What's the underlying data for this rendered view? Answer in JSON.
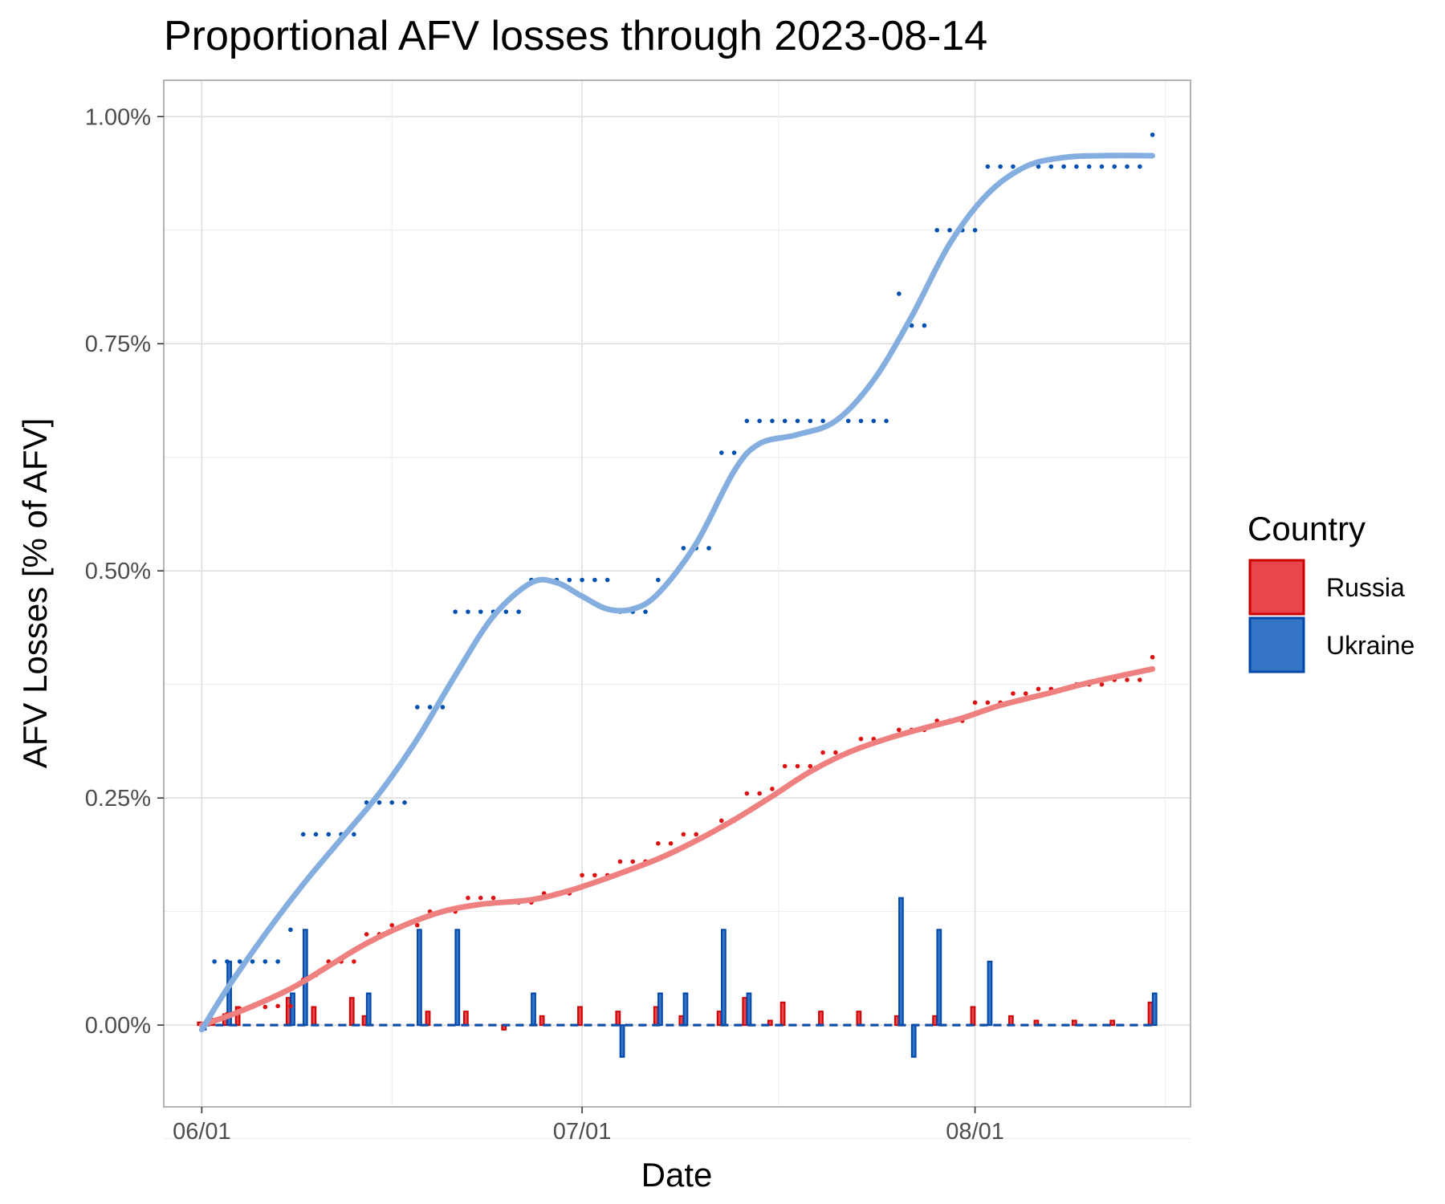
{
  "chart_data": {
    "type": "line",
    "title": "Proportional AFV losses through 2023-08-14",
    "xlabel": "Date",
    "ylabel": "AFV Losses [% of AFV]",
    "x_ticks": [
      "06/01",
      "07/01",
      "08/01"
    ],
    "x_tick_dates": [
      "2023-06-01",
      "2023-07-01",
      "2023-08-01"
    ],
    "x_range": [
      "2023-05-29",
      "2023-08-18"
    ],
    "y_ticks": [
      "0.00%",
      "0.25%",
      "0.50%",
      "0.75%",
      "1.00%"
    ],
    "y_tick_values": [
      0,
      0.25,
      0.5,
      0.75,
      1.0
    ],
    "ylim": [
      -0.09,
      1.04
    ],
    "grid": true,
    "legend": {
      "title": "Country",
      "position": "right",
      "entries": [
        {
          "name": "Russia",
          "color": "#e8454c",
          "border": "#cc0000"
        },
        {
          "name": "Ukraine",
          "color": "#3575c5",
          "border": "#0047ab"
        }
      ]
    },
    "series": [
      {
        "name": "Russia",
        "color": "#dd1111",
        "smooth_color": "#ee8080",
        "bar_color": "#e8454c",
        "bar_border": "#cc0000",
        "cumulative": [
          [
            "2023-06-01",
            0.0
          ],
          [
            "2023-06-02",
            0.005
          ],
          [
            "2023-06-03",
            0.012
          ],
          [
            "2023-06-04",
            0.018
          ],
          [
            "2023-06-05",
            0.02
          ],
          [
            "2023-06-06",
            0.02
          ],
          [
            "2023-06-07",
            0.021
          ],
          [
            "2023-06-08",
            0.021
          ],
          [
            "2023-06-09",
            0.05
          ],
          [
            "2023-06-10",
            0.055
          ],
          [
            "2023-06-11",
            0.07
          ],
          [
            "2023-06-12",
            0.07
          ],
          [
            "2023-06-13",
            0.07
          ],
          [
            "2023-06-14",
            0.1
          ],
          [
            "2023-06-15",
            0.1
          ],
          [
            "2023-06-16",
            0.11
          ],
          [
            "2023-06-17",
            0.11
          ],
          [
            "2023-06-18",
            0.11
          ],
          [
            "2023-06-19",
            0.125
          ],
          [
            "2023-06-20",
            0.125
          ],
          [
            "2023-06-21",
            0.125
          ],
          [
            "2023-06-22",
            0.14
          ],
          [
            "2023-06-23",
            0.14
          ],
          [
            "2023-06-24",
            0.14
          ],
          [
            "2023-06-25",
            0.135
          ],
          [
            "2023-06-26",
            0.135
          ],
          [
            "2023-06-27",
            0.135
          ],
          [
            "2023-06-28",
            0.145
          ],
          [
            "2023-06-29",
            0.145
          ],
          [
            "2023-06-30",
            0.145
          ],
          [
            "2023-07-01",
            0.165
          ],
          [
            "2023-07-02",
            0.165
          ],
          [
            "2023-07-03",
            0.165
          ],
          [
            "2023-07-04",
            0.18
          ],
          [
            "2023-07-05",
            0.18
          ],
          [
            "2023-07-06",
            0.18
          ],
          [
            "2023-07-07",
            0.2
          ],
          [
            "2023-07-08",
            0.2
          ],
          [
            "2023-07-09",
            0.21
          ],
          [
            "2023-07-10",
            0.21
          ],
          [
            "2023-07-11",
            0.21
          ],
          [
            "2023-07-12",
            0.225
          ],
          [
            "2023-07-13",
            0.225
          ],
          [
            "2023-07-14",
            0.255
          ],
          [
            "2023-07-15",
            0.255
          ],
          [
            "2023-07-16",
            0.26
          ],
          [
            "2023-07-17",
            0.285
          ],
          [
            "2023-07-18",
            0.285
          ],
          [
            "2023-07-19",
            0.285
          ],
          [
            "2023-07-20",
            0.3
          ],
          [
            "2023-07-21",
            0.3
          ],
          [
            "2023-07-22",
            0.3
          ],
          [
            "2023-07-23",
            0.315
          ],
          [
            "2023-07-24",
            0.315
          ],
          [
            "2023-07-25",
            0.315
          ],
          [
            "2023-07-26",
            0.325
          ],
          [
            "2023-07-27",
            0.325
          ],
          [
            "2023-07-28",
            0.325
          ],
          [
            "2023-07-29",
            0.335
          ],
          [
            "2023-07-30",
            0.335
          ],
          [
            "2023-07-31",
            0.335
          ],
          [
            "2023-08-01",
            0.355
          ],
          [
            "2023-08-02",
            0.355
          ],
          [
            "2023-08-03",
            0.355
          ],
          [
            "2023-08-04",
            0.365
          ],
          [
            "2023-08-05",
            0.365
          ],
          [
            "2023-08-06",
            0.37
          ],
          [
            "2023-08-07",
            0.37
          ],
          [
            "2023-08-08",
            0.37
          ],
          [
            "2023-08-09",
            0.375
          ],
          [
            "2023-08-10",
            0.375
          ],
          [
            "2023-08-11",
            0.375
          ],
          [
            "2023-08-12",
            0.38
          ],
          [
            "2023-08-13",
            0.38
          ],
          [
            "2023-08-14",
            0.38
          ],
          [
            "2023-08-15",
            0.405
          ]
        ],
        "trend": [
          [
            "2023-06-01",
            0.0
          ],
          [
            "2023-06-04",
            0.015
          ],
          [
            "2023-06-08",
            0.04
          ],
          [
            "2023-06-11",
            0.065
          ],
          [
            "2023-06-14",
            0.09
          ],
          [
            "2023-06-17",
            0.11
          ],
          [
            "2023-06-20",
            0.125
          ],
          [
            "2023-06-23",
            0.133
          ],
          [
            "2023-06-27",
            0.138
          ],
          [
            "2023-06-30",
            0.148
          ],
          [
            "2023-07-03",
            0.162
          ],
          [
            "2023-07-07",
            0.183
          ],
          [
            "2023-07-10",
            0.203
          ],
          [
            "2023-07-13",
            0.226
          ],
          [
            "2023-07-16",
            0.252
          ],
          [
            "2023-07-19",
            0.279
          ],
          [
            "2023-07-22",
            0.3
          ],
          [
            "2023-07-25",
            0.315
          ],
          [
            "2023-07-28",
            0.327
          ],
          [
            "2023-07-31",
            0.338
          ],
          [
            "2023-08-03",
            0.352
          ],
          [
            "2023-08-07",
            0.366
          ],
          [
            "2023-08-10",
            0.377
          ],
          [
            "2023-08-15",
            0.392
          ]
        ],
        "daily": [
          [
            "2023-06-01",
            0.003
          ],
          [
            "2023-06-02",
            0.007
          ],
          [
            "2023-06-03",
            0.012
          ],
          [
            "2023-06-04",
            0.02
          ],
          [
            "2023-06-08",
            0.03
          ],
          [
            "2023-06-10",
            0.02
          ],
          [
            "2023-06-13",
            0.03
          ],
          [
            "2023-06-14",
            0.01
          ],
          [
            "2023-06-19",
            0.015
          ],
          [
            "2023-06-22",
            0.015
          ],
          [
            "2023-06-25",
            -0.005
          ],
          [
            "2023-06-28",
            0.01
          ],
          [
            "2023-07-01",
            0.02
          ],
          [
            "2023-07-04",
            0.015
          ],
          [
            "2023-07-07",
            0.02
          ],
          [
            "2023-07-09",
            0.01
          ],
          [
            "2023-07-12",
            0.015
          ],
          [
            "2023-07-14",
            0.03
          ],
          [
            "2023-07-16",
            0.005
          ],
          [
            "2023-07-17",
            0.025
          ],
          [
            "2023-07-20",
            0.015
          ],
          [
            "2023-07-23",
            0.015
          ],
          [
            "2023-07-26",
            0.01
          ],
          [
            "2023-07-29",
            0.01
          ],
          [
            "2023-08-01",
            0.02
          ],
          [
            "2023-08-04",
            0.01
          ],
          [
            "2023-08-06",
            0.005
          ],
          [
            "2023-08-09",
            0.005
          ],
          [
            "2023-08-12",
            0.005
          ],
          [
            "2023-08-15",
            0.025
          ]
        ]
      },
      {
        "name": "Ukraine",
        "color": "#0050b0",
        "smooth_color": "#84aee0",
        "bar_color": "#3575c5",
        "bar_border": "#0047ab",
        "cumulative": [
          [
            "2023-06-02",
            0.07
          ],
          [
            "2023-06-03",
            0.07
          ],
          [
            "2023-06-04",
            0.07
          ],
          [
            "2023-06-05",
            0.07
          ],
          [
            "2023-06-06",
            0.07
          ],
          [
            "2023-06-07",
            0.07
          ],
          [
            "2023-06-08",
            0.105
          ],
          [
            "2023-06-09",
            0.21
          ],
          [
            "2023-06-10",
            0.21
          ],
          [
            "2023-06-11",
            0.21
          ],
          [
            "2023-06-12",
            0.21
          ],
          [
            "2023-06-13",
            0.21
          ],
          [
            "2023-06-14",
            0.245
          ],
          [
            "2023-06-15",
            0.245
          ],
          [
            "2023-06-16",
            0.245
          ],
          [
            "2023-06-17",
            0.245
          ],
          [
            "2023-06-18",
            0.35
          ],
          [
            "2023-06-19",
            0.35
          ],
          [
            "2023-06-20",
            0.35
          ],
          [
            "2023-06-21",
            0.455
          ],
          [
            "2023-06-22",
            0.455
          ],
          [
            "2023-06-23",
            0.455
          ],
          [
            "2023-06-24",
            0.455
          ],
          [
            "2023-06-25",
            0.455
          ],
          [
            "2023-06-26",
            0.455
          ],
          [
            "2023-06-27",
            0.49
          ],
          [
            "2023-06-28",
            0.49
          ],
          [
            "2023-06-29",
            0.49
          ],
          [
            "2023-06-30",
            0.49
          ],
          [
            "2023-07-01",
            0.49
          ],
          [
            "2023-07-02",
            0.49
          ],
          [
            "2023-07-03",
            0.49
          ],
          [
            "2023-07-04",
            0.455
          ],
          [
            "2023-07-05",
            0.455
          ],
          [
            "2023-07-06",
            0.455
          ],
          [
            "2023-07-07",
            0.49
          ],
          [
            "2023-07-08",
            0.49
          ],
          [
            "2023-07-09",
            0.525
          ],
          [
            "2023-07-10",
            0.525
          ],
          [
            "2023-07-11",
            0.525
          ],
          [
            "2023-07-12",
            0.63
          ],
          [
            "2023-07-13",
            0.63
          ],
          [
            "2023-07-14",
            0.665
          ],
          [
            "2023-07-15",
            0.665
          ],
          [
            "2023-07-16",
            0.665
          ],
          [
            "2023-07-17",
            0.665
          ],
          [
            "2023-07-18",
            0.665
          ],
          [
            "2023-07-19",
            0.665
          ],
          [
            "2023-07-20",
            0.665
          ],
          [
            "2023-07-21",
            0.665
          ],
          [
            "2023-07-22",
            0.665
          ],
          [
            "2023-07-23",
            0.665
          ],
          [
            "2023-07-24",
            0.665
          ],
          [
            "2023-07-25",
            0.665
          ],
          [
            "2023-07-26",
            0.805
          ],
          [
            "2023-07-27",
            0.77
          ],
          [
            "2023-07-28",
            0.77
          ],
          [
            "2023-07-29",
            0.875
          ],
          [
            "2023-07-30",
            0.875
          ],
          [
            "2023-07-31",
            0.875
          ],
          [
            "2023-08-01",
            0.875
          ],
          [
            "2023-08-02",
            0.945
          ],
          [
            "2023-08-03",
            0.945
          ],
          [
            "2023-08-04",
            0.945
          ],
          [
            "2023-08-05",
            0.945
          ],
          [
            "2023-08-06",
            0.945
          ],
          [
            "2023-08-07",
            0.945
          ],
          [
            "2023-08-08",
            0.945
          ],
          [
            "2023-08-09",
            0.945
          ],
          [
            "2023-08-10",
            0.945
          ],
          [
            "2023-08-11",
            0.945
          ],
          [
            "2023-08-12",
            0.945
          ],
          [
            "2023-08-13",
            0.945
          ],
          [
            "2023-08-14",
            0.945
          ],
          [
            "2023-08-15",
            0.98
          ]
        ],
        "trend": [
          [
            "2023-06-01",
            -0.005
          ],
          [
            "2023-06-03",
            0.04
          ],
          [
            "2023-06-06",
            0.1
          ],
          [
            "2023-06-09",
            0.155
          ],
          [
            "2023-06-12",
            0.205
          ],
          [
            "2023-06-15",
            0.255
          ],
          [
            "2023-06-18",
            0.315
          ],
          [
            "2023-06-21",
            0.385
          ],
          [
            "2023-06-24",
            0.45
          ],
          [
            "2023-06-27",
            0.487
          ],
          [
            "2023-06-29",
            0.487
          ],
          [
            "2023-07-01",
            0.472
          ],
          [
            "2023-07-03",
            0.458
          ],
          [
            "2023-07-05",
            0.458
          ],
          [
            "2023-07-07",
            0.475
          ],
          [
            "2023-07-10",
            0.53
          ],
          [
            "2023-07-13",
            0.61
          ],
          [
            "2023-07-15",
            0.64
          ],
          [
            "2023-07-18",
            0.65
          ],
          [
            "2023-07-21",
            0.665
          ],
          [
            "2023-07-24",
            0.71
          ],
          [
            "2023-07-27",
            0.78
          ],
          [
            "2023-07-30",
            0.86
          ],
          [
            "2023-08-02",
            0.915
          ],
          [
            "2023-08-05",
            0.945
          ],
          [
            "2023-08-08",
            0.955
          ],
          [
            "2023-08-11",
            0.957
          ],
          [
            "2023-08-15",
            0.957
          ]
        ],
        "daily": [
          [
            "2023-06-01",
            -0.005
          ],
          [
            "2023-06-03",
            0.07
          ],
          [
            "2023-06-08",
            0.035
          ],
          [
            "2023-06-09",
            0.105
          ],
          [
            "2023-06-14",
            0.035
          ],
          [
            "2023-06-18",
            0.105
          ],
          [
            "2023-06-21",
            0.105
          ],
          [
            "2023-06-27",
            0.035
          ],
          [
            "2023-07-04",
            -0.035
          ],
          [
            "2023-07-07",
            0.035
          ],
          [
            "2023-07-09",
            0.035
          ],
          [
            "2023-07-12",
            0.105
          ],
          [
            "2023-07-14",
            0.035
          ],
          [
            "2023-07-26",
            0.14
          ],
          [
            "2023-07-27",
            -0.035
          ],
          [
            "2023-07-29",
            0.105
          ],
          [
            "2023-08-02",
            0.07
          ],
          [
            "2023-08-15",
            0.035
          ]
        ]
      }
    ]
  }
}
